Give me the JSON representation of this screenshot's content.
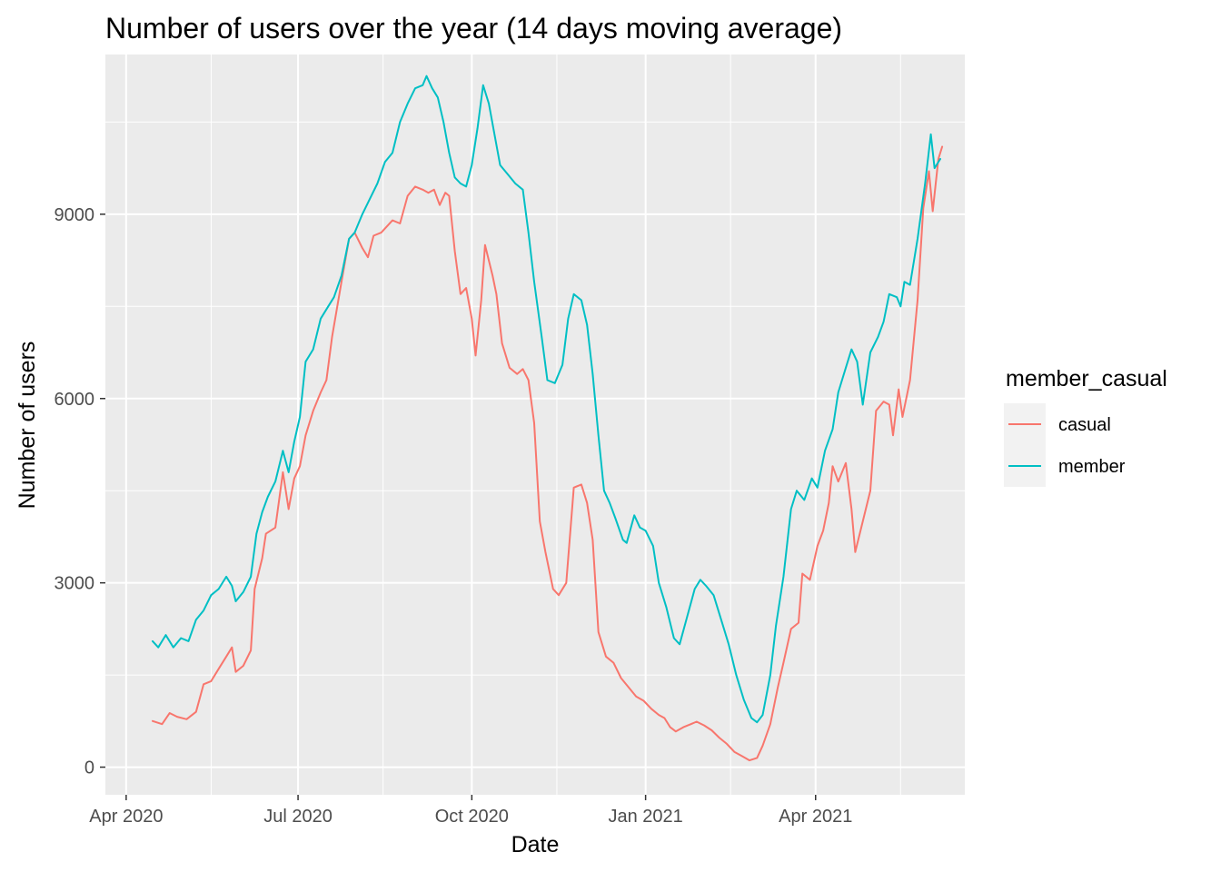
{
  "chart_data": {
    "type": "line",
    "title": "Number of users over the year (14 days moving average)",
    "xlabel": "Date",
    "ylabel": "Number of users",
    "x_axis_type": "date",
    "xlim": [
      "2020-03-21",
      "2021-06-19"
    ],
    "ylim": [
      -450,
      11600
    ],
    "x_ticks": [
      {
        "date": "2020-04-01",
        "label": "Apr 2020"
      },
      {
        "date": "2020-07-01",
        "label": "Jul 2020"
      },
      {
        "date": "2020-10-01",
        "label": "Oct 2020"
      },
      {
        "date": "2021-01-01",
        "label": "Jan 2021"
      },
      {
        "date": "2021-04-01",
        "label": "Apr 2021"
      }
    ],
    "x_minor_ticks": [
      "2020-05-16",
      "2020-08-15",
      "2020-11-15",
      "2021-02-15",
      "2021-05-16"
    ],
    "y_ticks": [
      0,
      3000,
      6000,
      9000
    ],
    "y_minor_ticks": [
      1500,
      4500,
      7500,
      10500
    ],
    "grid": true,
    "panel_background": "#ebebeb",
    "legend": {
      "title": "member_casual",
      "position": "right"
    },
    "series": [
      {
        "name": "casual",
        "color": "#f8766d",
        "points": [
          [
            "2020-04-15",
            750
          ],
          [
            "2020-04-20",
            700
          ],
          [
            "2020-04-24",
            880
          ],
          [
            "2020-04-28",
            820
          ],
          [
            "2020-05-03",
            780
          ],
          [
            "2020-05-08",
            900
          ],
          [
            "2020-05-12",
            1350
          ],
          [
            "2020-05-16",
            1400
          ],
          [
            "2020-05-20",
            1600
          ],
          [
            "2020-05-24",
            1800
          ],
          [
            "2020-05-27",
            1950
          ],
          [
            "2020-05-29",
            1550
          ],
          [
            "2020-06-02",
            1650
          ],
          [
            "2020-06-06",
            1900
          ],
          [
            "2020-06-08",
            2900
          ],
          [
            "2020-06-12",
            3400
          ],
          [
            "2020-06-14",
            3800
          ],
          [
            "2020-06-19",
            3900
          ],
          [
            "2020-06-23",
            4800
          ],
          [
            "2020-06-26",
            4200
          ],
          [
            "2020-06-29",
            4700
          ],
          [
            "2020-07-02",
            4900
          ],
          [
            "2020-07-05",
            5400
          ],
          [
            "2020-07-09",
            5800
          ],
          [
            "2020-07-13",
            6100
          ],
          [
            "2020-07-16",
            6300
          ],
          [
            "2020-07-19",
            7000
          ],
          [
            "2020-07-24",
            7900
          ],
          [
            "2020-07-28",
            8600
          ],
          [
            "2020-07-31",
            8700
          ],
          [
            "2020-08-04",
            8450
          ],
          [
            "2020-08-07",
            8300
          ],
          [
            "2020-08-10",
            8650
          ],
          [
            "2020-08-14",
            8700
          ],
          [
            "2020-08-20",
            8900
          ],
          [
            "2020-08-24",
            8850
          ],
          [
            "2020-08-28",
            9300
          ],
          [
            "2020-09-01",
            9450
          ],
          [
            "2020-09-05",
            9400
          ],
          [
            "2020-09-08",
            9350
          ],
          [
            "2020-09-11",
            9400
          ],
          [
            "2020-09-14",
            9150
          ],
          [
            "2020-09-17",
            9350
          ],
          [
            "2020-09-19",
            9300
          ],
          [
            "2020-09-22",
            8400
          ],
          [
            "2020-09-25",
            7700
          ],
          [
            "2020-09-28",
            7800
          ],
          [
            "2020-10-01",
            7300
          ],
          [
            "2020-10-03",
            6700
          ],
          [
            "2020-10-06",
            7600
          ],
          [
            "2020-10-08",
            8500
          ],
          [
            "2020-10-12",
            8000
          ],
          [
            "2020-10-14",
            7700
          ],
          [
            "2020-10-17",
            6900
          ],
          [
            "2020-10-21",
            6500
          ],
          [
            "2020-10-25",
            6400
          ],
          [
            "2020-10-28",
            6480
          ],
          [
            "2020-10-31",
            6300
          ],
          [
            "2020-11-03",
            5600
          ],
          [
            "2020-11-06",
            4000
          ],
          [
            "2020-11-09",
            3500
          ],
          [
            "2020-11-13",
            2900
          ],
          [
            "2020-11-16",
            2800
          ],
          [
            "2020-11-20",
            3000
          ],
          [
            "2020-11-24",
            4550
          ],
          [
            "2020-11-28",
            4600
          ],
          [
            "2020-12-01",
            4300
          ],
          [
            "2020-12-04",
            3700
          ],
          [
            "2020-12-07",
            2200
          ],
          [
            "2020-12-11",
            1800
          ],
          [
            "2020-12-15",
            1700
          ],
          [
            "2020-12-19",
            1450
          ],
          [
            "2020-12-23",
            1300
          ],
          [
            "2020-12-27",
            1150
          ],
          [
            "2020-12-31",
            1080
          ],
          [
            "2021-01-04",
            950
          ],
          [
            "2021-01-08",
            850
          ],
          [
            "2021-01-11",
            800
          ],
          [
            "2021-01-14",
            650
          ],
          [
            "2021-01-17",
            580
          ],
          [
            "2021-01-21",
            650
          ],
          [
            "2021-01-25",
            700
          ],
          [
            "2021-01-28",
            740
          ],
          [
            "2021-02-01",
            680
          ],
          [
            "2021-02-05",
            600
          ],
          [
            "2021-02-09",
            480
          ],
          [
            "2021-02-13",
            380
          ],
          [
            "2021-02-17",
            250
          ],
          [
            "2021-02-21",
            180
          ],
          [
            "2021-02-25",
            110
          ],
          [
            "2021-03-01",
            150
          ],
          [
            "2021-03-04",
            350
          ],
          [
            "2021-03-08",
            700
          ],
          [
            "2021-03-12",
            1300
          ],
          [
            "2021-03-15",
            1700
          ],
          [
            "2021-03-19",
            2250
          ],
          [
            "2021-03-23",
            2350
          ],
          [
            "2021-03-25",
            3150
          ],
          [
            "2021-03-29",
            3050
          ],
          [
            "2021-04-02",
            3600
          ],
          [
            "2021-04-05",
            3850
          ],
          [
            "2021-04-08",
            4300
          ],
          [
            "2021-04-10",
            4900
          ],
          [
            "2021-04-13",
            4650
          ],
          [
            "2021-04-17",
            4950
          ],
          [
            "2021-04-20",
            4200
          ],
          [
            "2021-04-22",
            3500
          ],
          [
            "2021-04-26",
            4000
          ],
          [
            "2021-04-30",
            4500
          ],
          [
            "2021-05-03",
            5800
          ],
          [
            "2021-05-07",
            5950
          ],
          [
            "2021-05-10",
            5900
          ],
          [
            "2021-05-12",
            5400
          ],
          [
            "2021-05-15",
            6150
          ],
          [
            "2021-05-17",
            5700
          ],
          [
            "2021-05-21",
            6300
          ],
          [
            "2021-05-25",
            7600
          ],
          [
            "2021-05-28",
            9100
          ],
          [
            "2021-05-31",
            9700
          ],
          [
            "2021-06-02",
            9050
          ],
          [
            "2021-06-05",
            9900
          ],
          [
            "2021-06-07",
            10100
          ]
        ]
      },
      {
        "name": "member",
        "color": "#00bfc4",
        "points": [
          [
            "2020-04-15",
            2050
          ],
          [
            "2020-04-18",
            1950
          ],
          [
            "2020-04-22",
            2150
          ],
          [
            "2020-04-26",
            1950
          ],
          [
            "2020-04-30",
            2100
          ],
          [
            "2020-05-04",
            2050
          ],
          [
            "2020-05-08",
            2400
          ],
          [
            "2020-05-12",
            2550
          ],
          [
            "2020-05-16",
            2800
          ],
          [
            "2020-05-20",
            2900
          ],
          [
            "2020-05-24",
            3100
          ],
          [
            "2020-05-27",
            2950
          ],
          [
            "2020-05-29",
            2700
          ],
          [
            "2020-06-02",
            2850
          ],
          [
            "2020-06-06",
            3100
          ],
          [
            "2020-06-09",
            3800
          ],
          [
            "2020-06-12",
            4150
          ],
          [
            "2020-06-15",
            4400
          ],
          [
            "2020-06-19",
            4650
          ],
          [
            "2020-06-23",
            5150
          ],
          [
            "2020-06-26",
            4800
          ],
          [
            "2020-06-29",
            5300
          ],
          [
            "2020-07-02",
            5700
          ],
          [
            "2020-07-05",
            6600
          ],
          [
            "2020-07-09",
            6800
          ],
          [
            "2020-07-13",
            7300
          ],
          [
            "2020-07-17",
            7500
          ],
          [
            "2020-07-20",
            7650
          ],
          [
            "2020-07-24",
            8000
          ],
          [
            "2020-07-28",
            8600
          ],
          [
            "2020-07-31",
            8700
          ],
          [
            "2020-08-04",
            9000
          ],
          [
            "2020-08-08",
            9250
          ],
          [
            "2020-08-12",
            9500
          ],
          [
            "2020-08-16",
            9850
          ],
          [
            "2020-08-20",
            10000
          ],
          [
            "2020-08-24",
            10500
          ],
          [
            "2020-08-28",
            10800
          ],
          [
            "2020-09-01",
            11050
          ],
          [
            "2020-09-05",
            11100
          ],
          [
            "2020-09-07",
            11250
          ],
          [
            "2020-09-10",
            11050
          ],
          [
            "2020-09-13",
            10900
          ],
          [
            "2020-09-16",
            10500
          ],
          [
            "2020-09-19",
            10000
          ],
          [
            "2020-09-22",
            9600
          ],
          [
            "2020-09-25",
            9500
          ],
          [
            "2020-09-28",
            9450
          ],
          [
            "2020-10-01",
            9800
          ],
          [
            "2020-10-04",
            10400
          ],
          [
            "2020-10-07",
            11100
          ],
          [
            "2020-10-10",
            10800
          ],
          [
            "2020-10-13",
            10300
          ],
          [
            "2020-10-16",
            9800
          ],
          [
            "2020-10-20",
            9650
          ],
          [
            "2020-10-24",
            9500
          ],
          [
            "2020-10-28",
            9400
          ],
          [
            "2020-10-31",
            8700
          ],
          [
            "2020-11-03",
            7900
          ],
          [
            "2020-11-07",
            7000
          ],
          [
            "2020-11-10",
            6300
          ],
          [
            "2020-11-14",
            6250
          ],
          [
            "2020-11-18",
            6550
          ],
          [
            "2020-11-21",
            7300
          ],
          [
            "2020-11-24",
            7700
          ],
          [
            "2020-11-28",
            7600
          ],
          [
            "2020-12-01",
            7200
          ],
          [
            "2020-12-04",
            6400
          ],
          [
            "2020-12-07",
            5400
          ],
          [
            "2020-12-10",
            4500
          ],
          [
            "2020-12-13",
            4300
          ],
          [
            "2020-12-16",
            4050
          ],
          [
            "2020-12-20",
            3700
          ],
          [
            "2020-12-22",
            3650
          ],
          [
            "2020-12-26",
            4100
          ],
          [
            "2020-12-29",
            3900
          ],
          [
            "2021-01-01",
            3850
          ],
          [
            "2021-01-05",
            3600
          ],
          [
            "2021-01-08",
            3000
          ],
          [
            "2021-01-12",
            2600
          ],
          [
            "2021-01-16",
            2100
          ],
          [
            "2021-01-19",
            2000
          ],
          [
            "2021-01-23",
            2450
          ],
          [
            "2021-01-27",
            2900
          ],
          [
            "2021-01-30",
            3050
          ],
          [
            "2021-02-02",
            2950
          ],
          [
            "2021-02-06",
            2800
          ],
          [
            "2021-02-10",
            2400
          ],
          [
            "2021-02-14",
            2000
          ],
          [
            "2021-02-18",
            1500
          ],
          [
            "2021-02-22",
            1100
          ],
          [
            "2021-02-26",
            800
          ],
          [
            "2021-03-01",
            730
          ],
          [
            "2021-03-04",
            850
          ],
          [
            "2021-03-08",
            1500
          ],
          [
            "2021-03-11",
            2300
          ],
          [
            "2021-03-15",
            3100
          ],
          [
            "2021-03-19",
            4200
          ],
          [
            "2021-03-22",
            4500
          ],
          [
            "2021-03-26",
            4350
          ],
          [
            "2021-03-30",
            4700
          ],
          [
            "2021-04-02",
            4550
          ],
          [
            "2021-04-06",
            5150
          ],
          [
            "2021-04-10",
            5500
          ],
          [
            "2021-04-13",
            6100
          ],
          [
            "2021-04-17",
            6500
          ],
          [
            "2021-04-20",
            6800
          ],
          [
            "2021-04-23",
            6600
          ],
          [
            "2021-04-26",
            5900
          ],
          [
            "2021-04-30",
            6750
          ],
          [
            "2021-05-04",
            7000
          ],
          [
            "2021-05-07",
            7250
          ],
          [
            "2021-05-10",
            7700
          ],
          [
            "2021-05-14",
            7650
          ],
          [
            "2021-05-16",
            7500
          ],
          [
            "2021-05-18",
            7900
          ],
          [
            "2021-05-21",
            7850
          ],
          [
            "2021-05-25",
            8600
          ],
          [
            "2021-05-29",
            9500
          ],
          [
            "2021-06-01",
            10300
          ],
          [
            "2021-06-03",
            9750
          ],
          [
            "2021-06-06",
            9900
          ]
        ]
      }
    ]
  }
}
